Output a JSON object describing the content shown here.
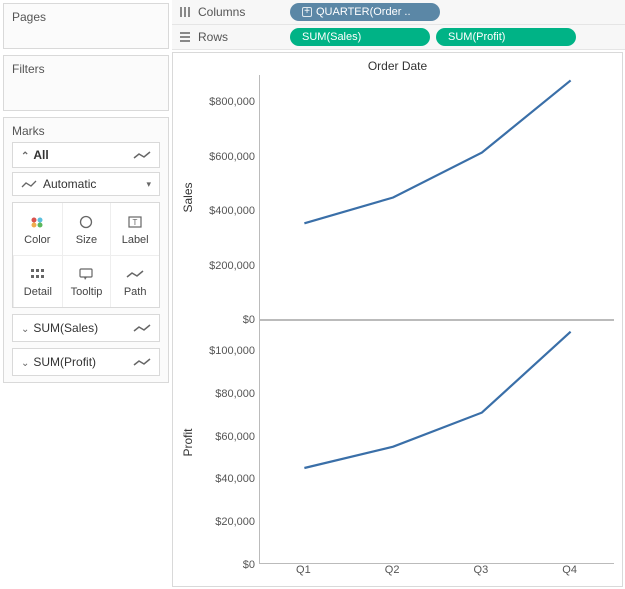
{
  "sidebar": {
    "pages_title": "Pages",
    "filters_title": "Filters",
    "marks_title": "Marks",
    "all_label": "All",
    "mark_type_label": "Automatic",
    "cards": [
      {
        "label": "Color"
      },
      {
        "label": "Size"
      },
      {
        "label": "Label"
      },
      {
        "label": "Detail"
      },
      {
        "label": "Tooltip"
      },
      {
        "label": "Path"
      }
    ],
    "measures": [
      {
        "label": "SUM(Sales)"
      },
      {
        "label": "SUM(Profit)"
      }
    ]
  },
  "shelves": {
    "columns_label": "Columns",
    "rows_label": "Rows",
    "columns_pills": [
      {
        "label": "QUARTER(Order ..",
        "color": "#5b87a6",
        "text_color": "#ffffff",
        "type": "dimension"
      }
    ],
    "rows_pills": [
      {
        "label": "SUM(Sales)",
        "color": "#00b386",
        "text_color": "#ffffff",
        "type": "measure"
      },
      {
        "label": "SUM(Profit)",
        "color": "#00b386",
        "text_color": "#ffffff",
        "type": "measure"
      }
    ]
  },
  "viz": {
    "title": "Order Date",
    "line_color": "#3a6fa8",
    "line_width": 2.2,
    "background_color": "#ffffff",
    "axis_color": "#bbbbbb",
    "tick_color": "#555555",
    "label_fontsize": 12,
    "tick_fontsize": 11,
    "x_categories": [
      "Q1",
      "Q2",
      "Q3",
      "Q4"
    ],
    "charts": [
      {
        "ylabel": "Sales",
        "ymin": 0,
        "ymax": 900000,
        "yticks": [
          0,
          200000,
          400000,
          600000,
          800000
        ],
        "ytick_labels": [
          "$0",
          "$200,000",
          "$400,000",
          "$600,000",
          "$800,000"
        ],
        "values": [
          355000,
          450000,
          615000,
          880000
        ]
      },
      {
        "ylabel": "Profit",
        "ymin": 0,
        "ymax": 115000,
        "yticks": [
          0,
          20000,
          40000,
          60000,
          80000,
          100000
        ],
        "ytick_labels": [
          "$0",
          "$20,000",
          "$40,000",
          "$60,000",
          "$80,000",
          "$100,000"
        ],
        "values": [
          46000,
          56000,
          72000,
          110000
        ]
      }
    ]
  }
}
